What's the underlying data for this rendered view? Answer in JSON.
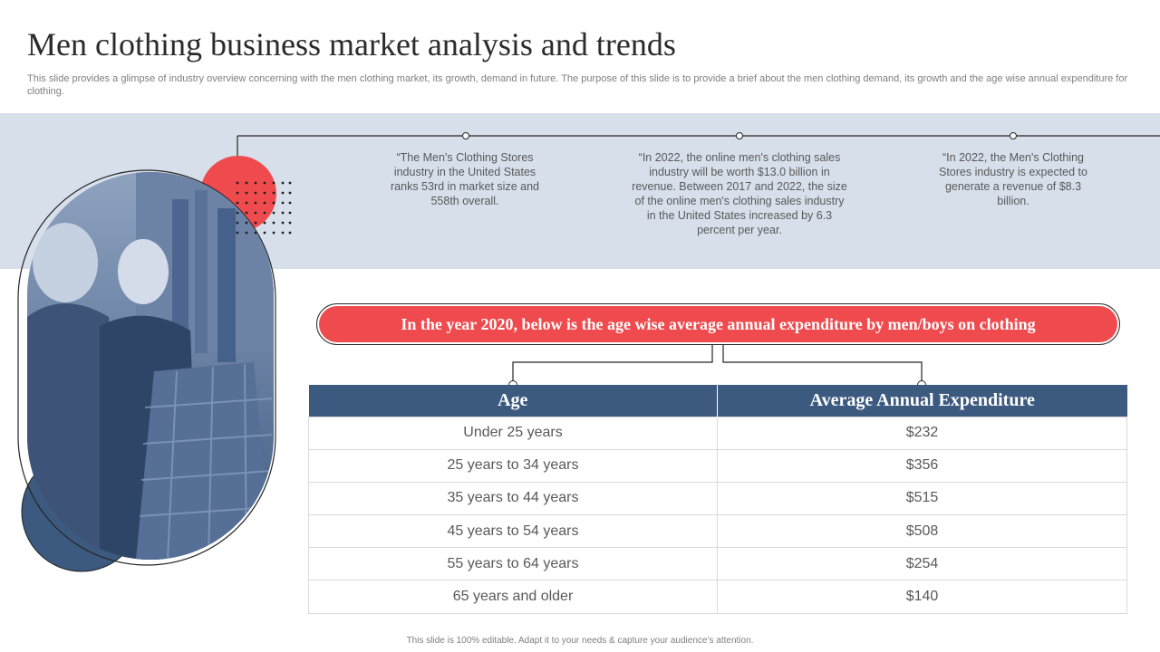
{
  "slide": {
    "title": "Men clothing business market analysis and trends",
    "subtitle": "This slide provides a glimpse of industry overview concerning with the men clothing market, its growth, demand in future. The purpose of this slide is to provide a brief about the men clothing demand, its growth and the age wise annual expenditure for clothing.",
    "footer": "This slide is 100% editable.  Adapt it to your needs & capture your audience’s attention."
  },
  "stats": [
    {
      "text": "“The Men's Clothing Stores industry in the United States ranks 53rd in market size and 558th overall."
    },
    {
      "text": "“In 2022, the online men's clothing sales industry will be worth $13.0 billion in revenue.  Between 2017 and 2022, the size of the online men's clothing sales industry in the United States increased by 6.3 percent per year."
    },
    {
      "text": "“In 2022, the Men's Clothing Stores industry is expected to generate a revenue  of $8.3 billion."
    }
  ],
  "banner": {
    "text": "In the year 2020, below is the age wise average annual expenditure by men/boys on clothing"
  },
  "table": {
    "headers": [
      "Age",
      "Average Annual  Expenditure"
    ],
    "rows": [
      {
        "age": "Under 25 years",
        "expenditure": "$232"
      },
      {
        "age": "25 years to 34 years",
        "expenditure": "$356"
      },
      {
        "age": "35 years to 44 years",
        "expenditure": "$515"
      },
      {
        "age": "45 years to 54 years",
        "expenditure": "$508"
      },
      {
        "age": "55 years to 64 years",
        "expenditure": "$254"
      },
      {
        "age": "65 years and older",
        "expenditure": "$140"
      }
    ]
  },
  "colors": {
    "accent_red": "#ef4b4f",
    "navy": "#3c5a80",
    "band": "#d6dfea"
  },
  "photo": {
    "icon": "men-shopping-clothes-photo"
  }
}
